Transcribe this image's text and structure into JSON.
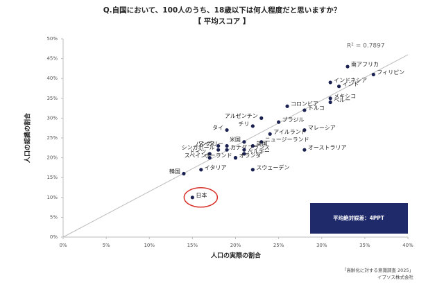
{
  "chart_data": {
    "type": "scatter",
    "title": "Q.自国において、100人のうち、18歳以下は何人程度だと思いますか？",
    "subtitle": "【 平均スコア 】",
    "x_label": "人口の実際の割合",
    "y_label": "人口の認識の割合",
    "r2_label": "R² = 0.7897",
    "annotation": "平均絶対誤差：4PPT",
    "source": [
      "「高齢化に対する意識調査 2025」",
      "イプソス株式会社"
    ],
    "color": "#1b2150",
    "trendline": {
      "x": [
        0,
        40
      ],
      "y": [
        0,
        46
      ]
    },
    "labels": [
      "南アフリカ",
      "フィリピン",
      "インドネシア",
      "インド",
      "メキシコ",
      "ペルー",
      "コロンビア",
      "トルコ",
      "アルゼンチン",
      "ブラジル",
      "チリ",
      "タイ",
      "マレーシア",
      "アイルランド",
      "米国",
      "ニュージーランド",
      "スイス",
      "ハンガリー",
      "英国",
      "シンガポール",
      "カナダ",
      "フランス",
      "オーストラリア",
      "ドイツ",
      "ベルギー",
      "スペイン",
      "オランダ",
      "ポーランド",
      "スウェーデン",
      "イタリア",
      "韓国",
      "日本"
    ],
    "x": [
      33,
      36,
      31,
      32,
      31,
      31,
      26,
      28,
      23,
      25,
      22,
      19,
      28,
      24,
      21,
      23,
      18,
      19,
      22,
      18,
      19,
      21,
      28,
      17,
      21,
      17,
      20,
      20,
      22,
      16,
      14,
      15
    ],
    "y": [
      43,
      41,
      39,
      38,
      35,
      34,
      33,
      32,
      30,
      29,
      28,
      27,
      27,
      26,
      24,
      24,
      23,
      23,
      23,
      22,
      22,
      22,
      22,
      21,
      21,
      20,
      20,
      20,
      17,
      17,
      16,
      10
    ],
    "xlim": [
      0,
      40
    ],
    "ylim": [
      0,
      50
    ],
    "xticks": [
      {
        "value": 0,
        "label": "0%"
      },
      {
        "value": 5,
        "label": "5%"
      },
      {
        "value": 10,
        "label": "10%"
      },
      {
        "value": 15,
        "label": "15%"
      },
      {
        "value": 20,
        "label": "20%"
      },
      {
        "value": 25,
        "label": "25%"
      },
      {
        "value": 30,
        "label": "30%"
      },
      {
        "value": 35,
        "label": "35%"
      },
      {
        "value": 40,
        "label": "40%"
      }
    ],
    "yticks": [
      {
        "value": 0,
        "label": "0%"
      },
      {
        "value": 5,
        "label": "5%"
      },
      {
        "value": 10,
        "label": "10%"
      },
      {
        "value": 15,
        "label": "15%"
      },
      {
        "value": 20,
        "label": "20%"
      },
      {
        "value": 25,
        "label": "25%"
      },
      {
        "value": 30,
        "label": "30%"
      },
      {
        "value": 35,
        "label": "35%"
      },
      {
        "value": 40,
        "label": "40%"
      },
      {
        "value": 45,
        "label": "45%"
      },
      {
        "value": 50,
        "label": "50%"
      }
    ]
  }
}
